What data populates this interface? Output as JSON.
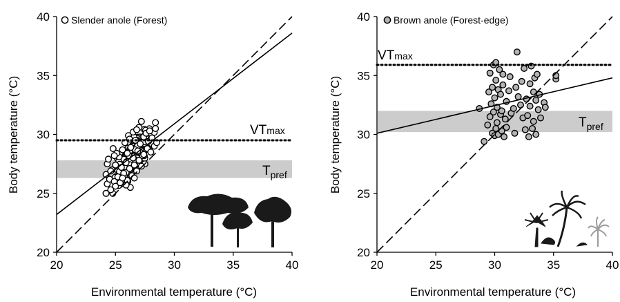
{
  "chart_data": [
    {
      "type": "scatter",
      "legend": "Slender anole (Forest)",
      "legend_marker": "open-circle",
      "legend_position": "top-left",
      "xlabel": "Environmental temperature (°C)",
      "ylabel": "Body temperature (°C)",
      "xlim": [
        20,
        40
      ],
      "ylim": [
        20,
        40
      ],
      "xticks": [
        20,
        25,
        30,
        35,
        40
      ],
      "yticks": [
        20,
        25,
        30,
        35,
        40
      ],
      "grid": false,
      "vtmax": {
        "value": 29.5,
        "label_main": "VT",
        "label_sub": "max"
      },
      "tpref": {
        "range": [
          26.3,
          27.8
        ],
        "label_main": "T",
        "label_sub": "pref"
      },
      "identity_line": [
        [
          20,
          20
        ],
        [
          40,
          40
        ]
      ],
      "regression_line": [
        [
          20,
          23.2
        ],
        [
          40,
          38.6
        ]
      ],
      "points": [
        [
          24.2,
          25.0
        ],
        [
          24.3,
          25.8
        ],
        [
          24.2,
          26.6
        ],
        [
          24.3,
          27.5
        ],
        [
          24.4,
          27.9
        ],
        [
          24.5,
          26.2
        ],
        [
          24.6,
          25.3
        ],
        [
          24.7,
          27.0
        ],
        [
          24.8,
          28.8
        ],
        [
          24.9,
          26.0
        ],
        [
          25.0,
          25.6
        ],
        [
          25.0,
          27.4
        ],
        [
          25.2,
          26.4
        ],
        [
          25.3,
          28.1
        ],
        [
          25.4,
          25.9
        ],
        [
          25.5,
          27.2
        ],
        [
          25.6,
          28.7
        ],
        [
          25.7,
          26.7
        ],
        [
          25.8,
          29.3
        ],
        [
          25.9,
          27.6
        ],
        [
          26.0,
          26.1
        ],
        [
          26.0,
          28.4
        ],
        [
          26.1,
          29.9
        ],
        [
          26.2,
          27.1
        ],
        [
          26.3,
          28.9
        ],
        [
          26.4,
          26.5
        ],
        [
          26.5,
          28.0
        ],
        [
          26.5,
          30.2
        ],
        [
          26.6,
          27.4
        ],
        [
          26.7,
          29.5
        ],
        [
          26.8,
          26.9
        ],
        [
          26.9,
          28.6
        ],
        [
          27.0,
          30.6
        ],
        [
          27.0,
          27.8
        ],
        [
          27.1,
          29.2
        ],
        [
          27.2,
          31.1
        ],
        [
          27.3,
          28.2
        ],
        [
          27.4,
          29.8
        ],
        [
          27.5,
          27.5
        ],
        [
          27.6,
          30.1
        ],
        [
          27.7,
          28.8
        ],
        [
          27.8,
          29.4
        ],
        [
          27.9,
          30.3
        ],
        [
          28.0,
          28.5
        ],
        [
          28.1,
          29.7
        ],
        [
          28.3,
          29.0
        ],
        [
          28.4,
          30.5
        ],
        [
          28.5,
          29.3
        ],
        [
          24.6,
          26.9
        ],
        [
          25.1,
          28.4
        ],
        [
          25.6,
          26.3
        ],
        [
          26.2,
          29.6
        ],
        [
          26.8,
          30.4
        ],
        [
          27.4,
          28.3
        ],
        [
          25.9,
          25.7
        ],
        [
          24.9,
          28.2
        ],
        [
          26.6,
          26.3
        ],
        [
          27.2,
          27.3
        ]
      ],
      "cluster": {
        "center": [
          26.4,
          27.9
        ],
        "spread": [
          0.8,
          1.0
        ]
      },
      "colors": {
        "marker_fill": "#ffffff",
        "marker_stroke": "#000000",
        "band": "#cccccc"
      },
      "icon": "forest-trees-icon"
    },
    {
      "type": "scatter",
      "legend": "Brown anole (Forest-edge)",
      "legend_marker": "filled-circle",
      "legend_position": "top-left",
      "xlabel": "Environmental temperature (°C)",
      "ylabel": "Body temperature (°C)",
      "xlim": [
        20,
        40
      ],
      "ylim": [
        20,
        40
      ],
      "xticks": [
        20,
        25,
        30,
        35,
        40
      ],
      "yticks": [
        20,
        25,
        30,
        35,
        40
      ],
      "grid": false,
      "vtmax": {
        "value": 35.9,
        "label_main": "VT",
        "label_sub": "max"
      },
      "tpref": {
        "range": [
          30.2,
          32.0
        ],
        "label_main": "T",
        "label_sub": "pref"
      },
      "identity_line": [
        [
          20,
          20
        ],
        [
          40,
          40
        ]
      ],
      "regression_line": [
        [
          20,
          30.1
        ],
        [
          40,
          34.8
        ]
      ],
      "points": [
        [
          28.7,
          32.2
        ],
        [
          29.1,
          29.4
        ],
        [
          29.4,
          30.8
        ],
        [
          29.5,
          33.6
        ],
        [
          29.6,
          31.5
        ],
        [
          29.6,
          35.2
        ],
        [
          29.7,
          32.6
        ],
        [
          29.8,
          30.1
        ],
        [
          29.8,
          34.0
        ],
        [
          29.9,
          35.9
        ],
        [
          29.9,
          31.9
        ],
        [
          30.0,
          33.1
        ],
        [
          30.0,
          29.9
        ],
        [
          30.1,
          30.5
        ],
        [
          30.1,
          34.6
        ],
        [
          30.1,
          36.1
        ],
        [
          30.2,
          32.3
        ],
        [
          30.2,
          31.0
        ],
        [
          30.3,
          33.8
        ],
        [
          30.3,
          30.0
        ],
        [
          30.4,
          35.5
        ],
        [
          30.5,
          31.7
        ],
        [
          30.5,
          33.4
        ],
        [
          30.6,
          30.3
        ],
        [
          30.6,
          32.0
        ],
        [
          30.7,
          34.2
        ],
        [
          30.7,
          35.1
        ],
        [
          30.8,
          29.8
        ],
        [
          30.9,
          31.3
        ],
        [
          31.0,
          32.8
        ],
        [
          31.0,
          30.6
        ],
        [
          31.2,
          33.7
        ],
        [
          31.3,
          34.9
        ],
        [
          31.4,
          31.8
        ],
        [
          31.6,
          32.2
        ],
        [
          31.7,
          30.1
        ],
        [
          31.9,
          37.0
        ],
        [
          32.2,
          32.5
        ],
        [
          32.3,
          34.5
        ],
        [
          32.4,
          31.4
        ],
        [
          32.5,
          35.6
        ],
        [
          32.6,
          30.4
        ],
        [
          32.7,
          33.0
        ],
        [
          32.8,
          31.6
        ],
        [
          32.9,
          29.8
        ],
        [
          33.0,
          34.3
        ],
        [
          33.0,
          32.4
        ],
        [
          33.1,
          35.8
        ],
        [
          33.2,
          30.5
        ],
        [
          33.3,
          33.6
        ],
        [
          33.3,
          31.1
        ],
        [
          33.4,
          34.8
        ],
        [
          33.5,
          32.9
        ],
        [
          33.5,
          30.0
        ],
        [
          33.6,
          35.1
        ],
        [
          33.7,
          32.1
        ],
        [
          33.8,
          33.4
        ],
        [
          33.9,
          31.4
        ],
        [
          34.2,
          32.7
        ],
        [
          34.3,
          32.3
        ],
        [
          35.2,
          34.7
        ],
        [
          35.2,
          35.0
        ],
        [
          31.8,
          34.0
        ],
        [
          32.0,
          33.2
        ]
      ],
      "colors": {
        "marker_fill": "#b3b3b3",
        "marker_stroke": "#000000",
        "band": "#cccccc"
      },
      "icon": "palm-trees-icon"
    }
  ]
}
